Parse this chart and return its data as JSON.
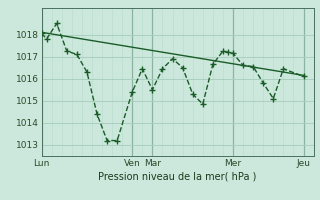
{
  "title": "Pression niveau de la mer( hPa )",
  "bg_color": "#cce8dc",
  "grid_major_color": "#aacfc0",
  "grid_minor_color": "#bcddd0",
  "line_color": "#1a5c28",
  "ylabel_color": "#2a4a2a",
  "x_ticks_labels": [
    "Lun",
    "Ven",
    "Mar",
    "Mer",
    "Jeu"
  ],
  "x_ticks_pos": [
    0,
    9,
    11,
    19,
    26
  ],
  "xlim": [
    0,
    27
  ],
  "ylim": [
    1012.5,
    1019.2
  ],
  "yticks": [
    1013,
    1014,
    1015,
    1016,
    1017,
    1018
  ],
  "series1_x": [
    0,
    0.5,
    1.5,
    2.5,
    3.5,
    4.5,
    5.5,
    6.5,
    7.5,
    9,
    10,
    11,
    12,
    13,
    14,
    15,
    16,
    17,
    18,
    18.5,
    19,
    20,
    21,
    22,
    23,
    24,
    26
  ],
  "series1_y": [
    1018.05,
    1017.8,
    1018.5,
    1017.25,
    1017.1,
    1016.3,
    1014.4,
    1013.2,
    1013.2,
    1015.4,
    1016.45,
    1015.5,
    1016.45,
    1016.9,
    1016.5,
    1015.3,
    1014.85,
    1016.65,
    1017.25,
    1017.2,
    1017.15,
    1016.6,
    1016.55,
    1015.8,
    1015.1,
    1016.45,
    1016.1
  ],
  "trend_x": [
    0,
    26
  ],
  "trend_y": [
    1018.1,
    1016.15
  ]
}
